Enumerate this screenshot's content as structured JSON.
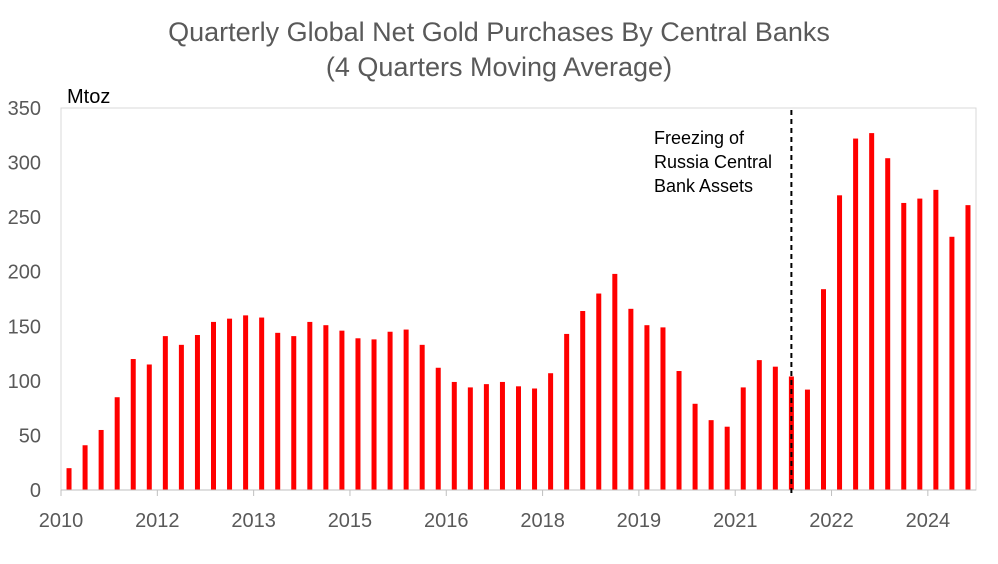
{
  "chart_data": {
    "type": "bar",
    "title": "Quarterly Global Net Gold Purchases By Central Banks",
    "subtitle": "(4 Quarters Moving Average)",
    "ylabel": "Mtoz",
    "xlabel": "",
    "ylim": [
      0,
      350
    ],
    "yticks": [
      0,
      50,
      100,
      150,
      200,
      250,
      300,
      350
    ],
    "xtick_labels": [
      "2010",
      "2012",
      "2013",
      "2015",
      "2016",
      "2018",
      "2019",
      "2021",
      "2022",
      "2024"
    ],
    "xtick_quarter_index": [
      0,
      6,
      12,
      18,
      24,
      30,
      36,
      42,
      48,
      54
    ],
    "grid": false,
    "legend": "none",
    "bar_color": "#ff0000",
    "values": [
      20,
      41,
      55,
      85,
      120,
      115,
      141,
      133,
      142,
      154,
      157,
      160,
      158,
      144,
      141,
      154,
      151,
      146,
      139,
      138,
      145,
      147,
      133,
      112,
      99,
      94,
      97,
      99,
      95,
      93,
      107,
      143,
      164,
      180,
      198,
      166,
      151,
      149,
      109,
      79,
      64,
      58,
      94,
      119,
      113,
      104,
      92,
      184,
      270,
      322,
      327,
      304,
      263,
      267,
      275,
      232,
      261
    ],
    "annotation": {
      "lines": [
        "Freezing of",
        "Russia Central",
        "Bank Assets"
      ],
      "position_quarter": 45.5
    }
  }
}
